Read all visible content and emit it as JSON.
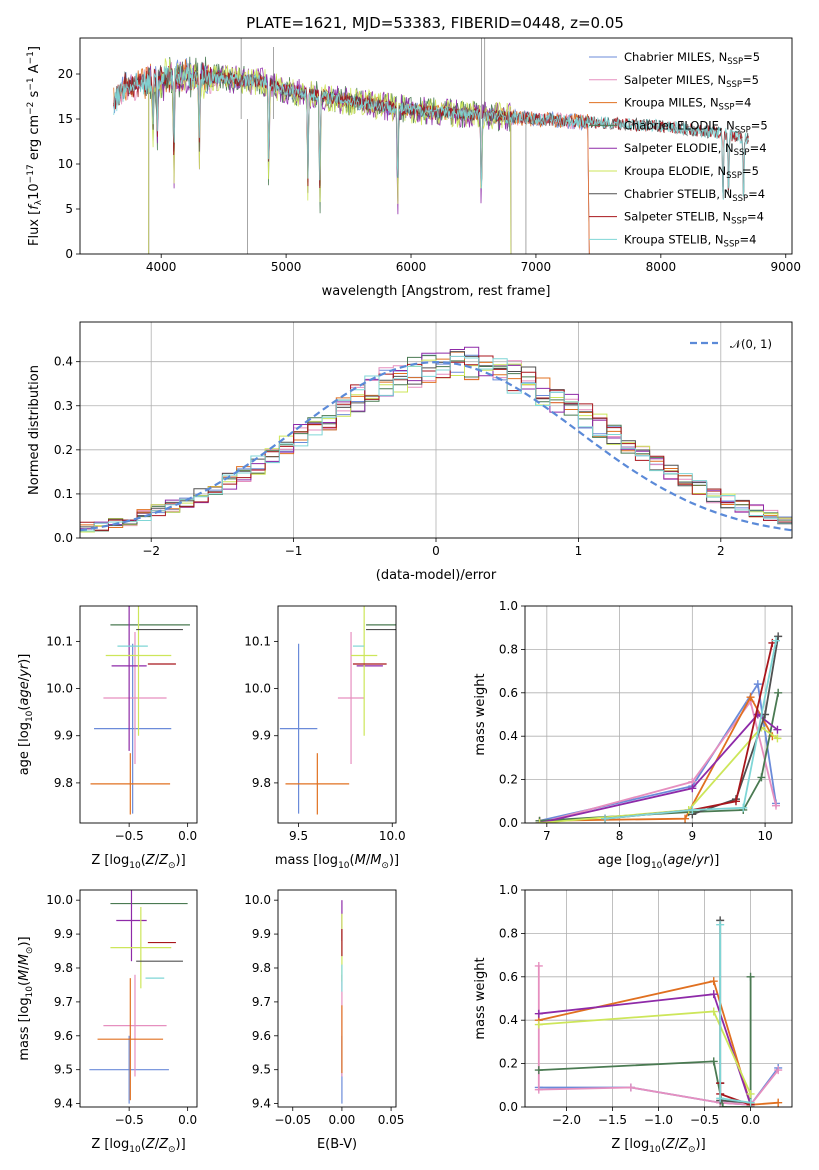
{
  "title": "PLATE=1621, MJD=53383, FIBERID=0448, z=0.05",
  "colors": {
    "chabrier_miles": "#6b8bd9",
    "salpeter_miles": "#e68fbf",
    "kroupa_miles": "#e07020",
    "chabrier_elodie": "#4a7a52",
    "salpeter_elodie": "#8e2aa8",
    "kroupa_elodie": "#cde65a",
    "chabrier_stelib": "#505050",
    "salpeter_stelib": "#a8161c",
    "kroupa_stelib": "#7fd6d6"
  },
  "chart_data": [
    {
      "id": "spectrum",
      "type": "line",
      "xlabel": "wavelength [Angstrom, rest frame]",
      "ylabel": "Flux [f_λ10^{-17} erg cm^{-2} s^{-1} A^{-1}]",
      "xlim": [
        3350,
        9050
      ],
      "ylim": [
        0,
        24
      ],
      "xticks": [
        "4000",
        "5000",
        "6000",
        "7000",
        "8000",
        "9000"
      ],
      "yticks": [
        "0",
        "5",
        "10",
        "15",
        "20"
      ],
      "legend": [
        {
          "label": "Chabrier MILES, N",
          "sub": "SSP",
          "suffix": "=5",
          "color_key": "chabrier_miles"
        },
        {
          "label": "Salpeter MILES, N",
          "sub": "SSP",
          "suffix": "=5",
          "color_key": "salpeter_miles"
        },
        {
          "label": "Kroupa MILES, N",
          "sub": "SSP",
          "suffix": "=4",
          "color_key": "kroupa_miles"
        },
        {
          "label": "Chabrier ELODIE, N",
          "sub": "SSP",
          "suffix": "=5",
          "color_key": "chabrier_elodie"
        },
        {
          "label": "Salpeter ELODIE, N",
          "sub": "SSP",
          "suffix": "=4",
          "color_key": "salpeter_elodie"
        },
        {
          "label": "Kroupa ELODIE, N",
          "sub": "SSP",
          "suffix": "=5",
          "color_key": "kroupa_elodie"
        },
        {
          "label": "Chabrier STELIB, N",
          "sub": "SSP",
          "suffix": "=4",
          "color_key": "chabrier_stelib"
        },
        {
          "label": "Salpeter STELIB, N",
          "sub": "SSP",
          "suffix": "=4",
          "color_key": "salpeter_stelib"
        },
        {
          "label": "Kroupa STELIB, N",
          "sub": "SSP",
          "suffix": "=4",
          "color_key": "kroupa_stelib"
        }
      ],
      "continuum": [
        [
          3620,
          16.5
        ],
        [
          3700,
          18.5
        ],
        [
          3850,
          19.0
        ],
        [
          4000,
          19.5
        ],
        [
          4200,
          19.8
        ],
        [
          4500,
          19.5
        ],
        [
          4800,
          19.2
        ],
        [
          5000,
          18.2
        ],
        [
          5500,
          17.0
        ],
        [
          6000,
          16.0
        ],
        [
          6500,
          15.5
        ],
        [
          7000,
          15.0
        ],
        [
          7500,
          14.6
        ],
        [
          8000,
          14.2
        ],
        [
          8500,
          13.4
        ],
        [
          8700,
          12.8
        ]
      ],
      "series_ranges": {
        "miles": [
          3620,
          7420
        ],
        "elodie": [
          3900,
          6800
        ],
        "stelib": [
          3620,
          8700
        ]
      },
      "absorption_lines": [
        [
          3934,
          7.5
        ],
        [
          3969,
          9.0
        ],
        [
          4102,
          13.5
        ],
        [
          4305,
          12.0
        ],
        [
          4861,
          15.0
        ],
        [
          5175,
          16.0
        ],
        [
          5270,
          16.3
        ],
        [
          5893,
          15.2
        ],
        [
          6563,
          15.0
        ],
        [
          8498,
          13.0
        ],
        [
          8542,
          12.0
        ],
        [
          8662,
          12.2
        ]
      ]
    },
    {
      "id": "residuals",
      "type": "step",
      "xlabel": "(data-model)/error",
      "ylabel": "Normed distribution",
      "xlim": [
        -2.5,
        2.5
      ],
      "ylim": [
        0,
        0.49
      ],
      "xticks": [
        "−2",
        "−1",
        "0",
        "1",
        "2"
      ],
      "yticks": [
        "0.0",
        "0.1",
        "0.2",
        "0.3",
        "0.4"
      ],
      "grid": true,
      "legend": [
        {
          "label": "𝒩(0, 1)",
          "style": "dashed",
          "color": "#5b8ad8"
        }
      ],
      "bin_edges_start": -2.5,
      "bin_width": 0.1,
      "mean_histogram": [
        0.025,
        0.028,
        0.032,
        0.041,
        0.053,
        0.061,
        0.071,
        0.084,
        0.097,
        0.112,
        0.13,
        0.148,
        0.167,
        0.188,
        0.209,
        0.231,
        0.253,
        0.274,
        0.296,
        0.316,
        0.334,
        0.352,
        0.366,
        0.378,
        0.389,
        0.396,
        0.399,
        0.396,
        0.389,
        0.378,
        0.366,
        0.352,
        0.334,
        0.316,
        0.296,
        0.274,
        0.253,
        0.231,
        0.209,
        0.188,
        0.167,
        0.148,
        0.13,
        0.112,
        0.097,
        0.084,
        0.071,
        0.061,
        0.053,
        0.045
      ]
    },
    {
      "id": "age-Z",
      "type": "scatter",
      "xlabel": "Z [log10(Z/Z⊙)]",
      "ylabel": "age  [log10(age/yr)]",
      "xlim": [
        -0.92,
        0.08
      ],
      "ylim": [
        9.715,
        10.175
      ],
      "xticks": [
        -0.5,
        0.0
      ],
      "yticks": [
        9.8,
        9.9,
        10.0,
        10.1
      ],
      "points": [
        {
          "key": "chabrier_miles",
          "x": -0.47,
          "y": 9.915,
          "xe": 0.33,
          "ye": 0.18
        },
        {
          "key": "salpeter_miles",
          "x": -0.45,
          "y": 9.98,
          "xe": 0.27,
          "ye": 0.14
        },
        {
          "key": "kroupa_miles",
          "x": -0.49,
          "y": 9.798,
          "xe": 0.34,
          "ye": 0.065
        },
        {
          "key": "chabrier_elodie",
          "x": -0.32,
          "y": 10.135,
          "xe": 0.34,
          "ye": 0.0
        },
        {
          "key": "salpeter_elodie",
          "x": -0.5,
          "y": 10.048,
          "xe": 0.15,
          "ye": 0.18
        },
        {
          "key": "kroupa_elodie",
          "x": -0.42,
          "y": 10.07,
          "xe": 0.28,
          "ye": 0.17
        },
        {
          "key": "chabrier_stelib",
          "x": -0.24,
          "y": 10.125,
          "xe": 0.2,
          "ye": 0.0
        },
        {
          "key": "salpeter_stelib",
          "x": -0.22,
          "y": 10.052,
          "xe": 0.12,
          "ye": 0.0
        },
        {
          "key": "kroupa_stelib",
          "x": -0.47,
          "y": 10.09,
          "xe": 0.13,
          "ye": 0.0
        }
      ]
    },
    {
      "id": "age-mass",
      "type": "scatter",
      "xlabel": "mass [log10(M/M⊙)]",
      "ylabel": "",
      "xlim": [
        9.39,
        10.02
      ],
      "ylim": [
        9.715,
        10.175
      ],
      "xticks": [
        9.5,
        10.0
      ],
      "yticks": [
        9.8,
        9.9,
        10.0,
        10.1
      ],
      "points": [
        {
          "key": "chabrier_miles",
          "x": 9.5,
          "y": 9.915,
          "xe": 0.1,
          "ye": 0.18
        },
        {
          "key": "salpeter_miles",
          "x": 9.78,
          "y": 9.98,
          "xe": 0.07,
          "ye": 0.14
        },
        {
          "key": "kroupa_miles",
          "x": 9.6,
          "y": 9.798,
          "xe": 0.17,
          "ye": 0.065
        },
        {
          "key": "chabrier_elodie",
          "x": 9.98,
          "y": 10.135,
          "xe": 0.12,
          "ye": 0.0
        },
        {
          "key": "salpeter_elodie",
          "x": 9.88,
          "y": 10.048,
          "xe": 0.07,
          "ye": 0.0
        },
        {
          "key": "kroupa_elodie",
          "x": 9.85,
          "y": 10.07,
          "xe": 0.07,
          "ye": 0.17
        },
        {
          "key": "chabrier_stelib",
          "x": 9.98,
          "y": 10.125,
          "xe": 0.12,
          "ye": 0.0
        },
        {
          "key": "salpeter_stelib",
          "x": 9.88,
          "y": 10.052,
          "xe": 0.09,
          "ye": 0.0
        },
        {
          "key": "kroupa_stelib",
          "x": 9.82,
          "y": 10.09,
          "xe": 0.03,
          "ye": 0.0
        }
      ]
    },
    {
      "id": "weight-age",
      "type": "line",
      "xlabel": "age  [log10(age/yr)]",
      "ylabel": "mass weight",
      "xlim": [
        6.7,
        10.37
      ],
      "ylim": [
        0,
        1
      ],
      "xticks": [
        7,
        8,
        9,
        10
      ],
      "yticks": [
        0.0,
        0.2,
        0.4,
        0.6,
        0.8,
        1.0
      ],
      "grid": true,
      "series": [
        {
          "key": "chabrier_miles",
          "x": [
            6.9,
            9.0,
            9.9,
            10.15
          ],
          "y": [
            0.01,
            0.17,
            0.64,
            0.09
          ]
        },
        {
          "key": "salpeter_miles",
          "x": [
            6.9,
            9.0,
            9.8,
            10.15
          ],
          "y": [
            0.0,
            0.19,
            0.56,
            0.08
          ]
        },
        {
          "key": "kroupa_miles",
          "x": [
            6.9,
            8.9,
            9.8,
            10.1
          ],
          "y": [
            0.01,
            0.02,
            0.58,
            0.4
          ]
        },
        {
          "key": "chabrier_elodie",
          "x": [
            6.9,
            8.95,
            9.7,
            9.95,
            10.18
          ],
          "y": [
            0.01,
            0.05,
            0.06,
            0.21,
            0.6
          ]
        },
        {
          "key": "salpeter_elodie",
          "x": [
            6.9,
            9.0,
            9.9,
            10.17
          ],
          "y": [
            0.0,
            0.16,
            0.5,
            0.43
          ]
        },
        {
          "key": "kroupa_elodie",
          "x": [
            6.9,
            8.95,
            9.95,
            10.17
          ],
          "y": [
            0.0,
            0.06,
            0.44,
            0.39
          ]
        },
        {
          "key": "chabrier_stelib",
          "x": [
            9.0,
            9.6,
            10.0,
            10.18
          ],
          "y": [
            0.04,
            0.11,
            0.5,
            0.86
          ]
        },
        {
          "key": "salpeter_stelib",
          "x": [
            7.8,
            9.0,
            9.6,
            10.1
          ],
          "y": [
            0.02,
            0.06,
            0.1,
            0.83
          ]
        },
        {
          "key": "kroupa_stelib",
          "x": [
            7.8,
            9.0,
            9.7,
            10.15
          ],
          "y": [
            0.02,
            0.06,
            0.07,
            0.84
          ]
        }
      ]
    },
    {
      "id": "mass-Z",
      "type": "scatter",
      "xlabel": "Z [log10(Z/Z⊙)]",
      "ylabel": "mass [log10(M/M⊙)]",
      "xlim": [
        -0.92,
        0.08
      ],
      "ylim": [
        9.39,
        10.03
      ],
      "xticks": [
        -0.5,
        0.0
      ],
      "yticks": [
        9.4,
        9.5,
        9.6,
        9.7,
        9.8,
        9.9,
        10.0
      ],
      "points": [
        {
          "key": "chabrier_miles",
          "x": -0.5,
          "y": 9.5,
          "xe": 0.34,
          "ye": 0.1
        },
        {
          "key": "salpeter_miles",
          "x": -0.45,
          "y": 9.63,
          "xe": 0.27,
          "ye": 0.15
        },
        {
          "key": "kroupa_miles",
          "x": -0.49,
          "y": 9.59,
          "xe": 0.28,
          "ye": 0.18
        },
        {
          "key": "chabrier_elodie",
          "x": -0.33,
          "y": 9.99,
          "xe": 0.33,
          "ye": 0.0
        },
        {
          "key": "salpeter_elodie",
          "x": -0.48,
          "y": 9.94,
          "xe": 0.13,
          "ye": 0.12
        },
        {
          "key": "kroupa_elodie",
          "x": -0.4,
          "y": 9.86,
          "xe": 0.26,
          "ye": 0.12
        },
        {
          "key": "chabrier_stelib",
          "x": -0.24,
          "y": 9.82,
          "xe": 0.2,
          "ye": 0.0
        },
        {
          "key": "salpeter_stelib",
          "x": -0.22,
          "y": 9.875,
          "xe": 0.12,
          "ye": 0.0
        },
        {
          "key": "kroupa_stelib",
          "x": -0.28,
          "y": 9.77,
          "xe": 0.08,
          "ye": 0.0
        }
      ]
    },
    {
      "id": "mass-ebv",
      "type": "scatter",
      "xlabel": "E(B-V)",
      "ylabel": "",
      "xlim": [
        -0.065,
        0.055
      ],
      "ylim": [
        9.39,
        10.03
      ],
      "xticks": [
        -0.05,
        0.0,
        0.05
      ],
      "yticks": [
        9.4,
        9.5,
        9.6,
        9.7,
        9.8,
        9.9,
        10.0
      ],
      "points": [
        {
          "key": "chabrier_miles",
          "x": 0.0,
          "y": 9.5,
          "xe": 0.0,
          "ye": 0.1
        },
        {
          "key": "salpeter_miles",
          "x": 0.0,
          "y": 9.63,
          "xe": 0.0,
          "ye": 0.15
        },
        {
          "key": "kroupa_miles",
          "x": 0.0,
          "y": 9.59,
          "xe": 0.0,
          "ye": 0.1
        },
        {
          "key": "chabrier_elodie",
          "x": 0.0,
          "y": 9.99,
          "xe": 0.0,
          "ye": 0.0
        },
        {
          "key": "salpeter_elodie",
          "x": 0.0,
          "y": 9.94,
          "xe": 0.0,
          "ye": 0.06
        },
        {
          "key": "kroupa_elodie",
          "x": 0.0,
          "y": 9.86,
          "xe": 0.0,
          "ye": 0.1
        },
        {
          "key": "chabrier_stelib",
          "x": 0.0,
          "y": 9.82,
          "xe": 0.0,
          "ye": 0.0
        },
        {
          "key": "salpeter_stelib",
          "x": 0.0,
          "y": 9.875,
          "xe": 0.0,
          "ye": 0.04
        },
        {
          "key": "kroupa_stelib",
          "x": 0.0,
          "y": 9.77,
          "xe": 0.0,
          "ye": 0.04
        }
      ]
    },
    {
      "id": "weight-Z",
      "type": "line",
      "xlabel": "Z [log10(Z/Z⊙)]",
      "ylabel": "mass weight",
      "xlim": [
        -2.45,
        0.45
      ],
      "ylim": [
        0,
        1
      ],
      "xticks": [
        -2.0,
        -1.5,
        -1.0,
        -0.5,
        0.0
      ],
      "yticks": [
        0.0,
        0.2,
        0.4,
        0.6,
        0.8,
        1.0
      ],
      "grid": true,
      "series": [
        {
          "key": "chabrier_miles",
          "x": [
            -2.3,
            -1.3,
            -0.33,
            0.0,
            0.3
          ],
          "y": [
            0.09,
            0.09,
            0.02,
            0.01,
            0.18
          ]
        },
        {
          "key": "salpeter_miles",
          "x": [
            -2.3,
            -2.3,
            -1.3,
            -0.33,
            0.0,
            0.3
          ],
          "y": [
            0.65,
            0.08,
            0.09,
            0.02,
            0.01,
            0.17
          ]
        },
        {
          "key": "kroupa_miles",
          "x": [
            -2.3,
            -0.4,
            0.0,
            0.3
          ],
          "y": [
            0.4,
            0.58,
            0.01,
            0.02
          ]
        },
        {
          "key": "chabrier_elodie",
          "x": [
            -2.3,
            -0.4,
            -0.3,
            0.0,
            0.0
          ],
          "y": [
            0.17,
            0.21,
            0.0,
            0.0,
            0.6
          ]
        },
        {
          "key": "salpeter_elodie",
          "x": [
            -2.3,
            -0.4,
            0.0
          ],
          "y": [
            0.43,
            0.52,
            0.01
          ]
        },
        {
          "key": "kroupa_elodie",
          "x": [
            -2.3,
            -0.4,
            0.0
          ],
          "y": [
            0.38,
            0.44,
            0.06
          ]
        },
        {
          "key": "chabrier_stelib",
          "x": [
            -0.33,
            -0.33,
            -0.33,
            0.0
          ],
          "y": [
            0.86,
            0.11,
            0.03,
            0.02
          ]
        },
        {
          "key": "salpeter_stelib",
          "x": [
            -0.33,
            -0.33,
            0.0
          ],
          "y": [
            0.11,
            0.06,
            0.01
          ]
        },
        {
          "key": "kroupa_stelib",
          "x": [
            -0.33,
            -0.33,
            0.0
          ],
          "y": [
            0.84,
            0.04,
            0.02
          ]
        }
      ]
    }
  ]
}
